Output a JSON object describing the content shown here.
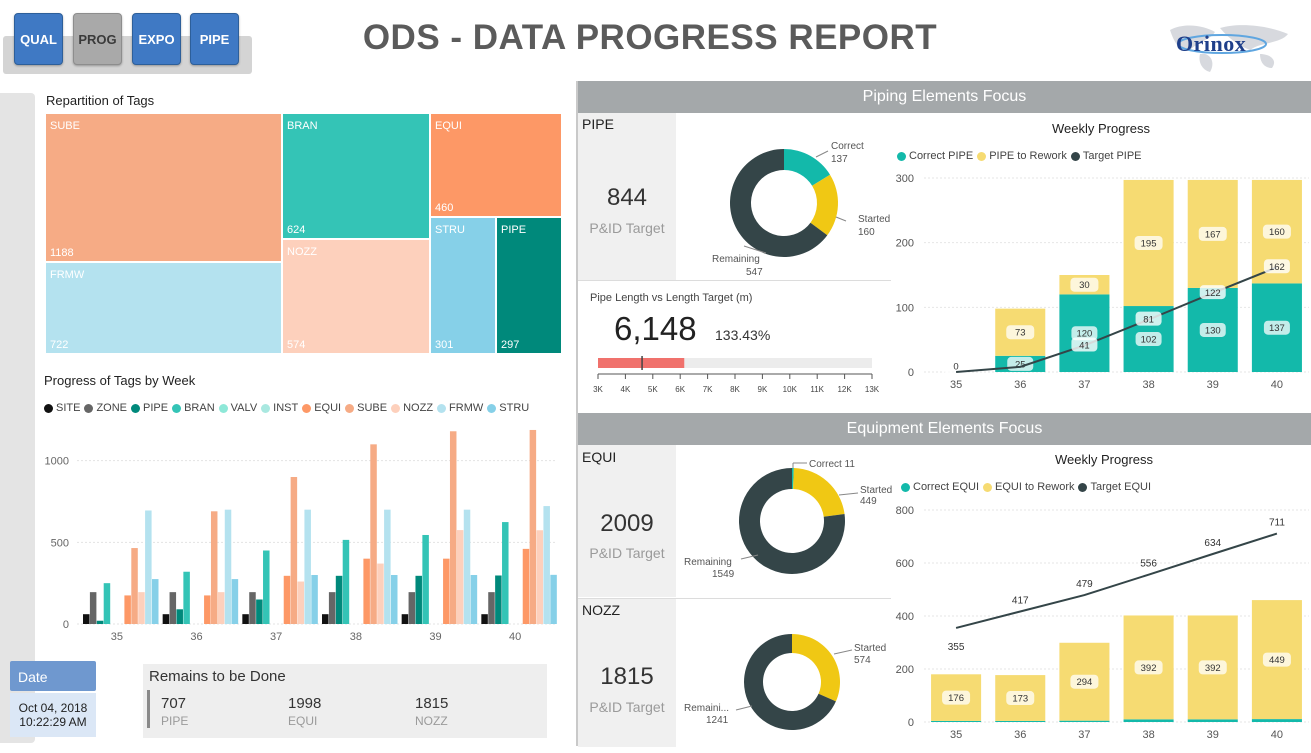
{
  "nav": {
    "buttons": [
      {
        "label": "QUAL",
        "active": false
      },
      {
        "label": "PROG",
        "active": true
      },
      {
        "label": "EXPO",
        "active": false
      },
      {
        "label": "PIPE",
        "active": false
      }
    ]
  },
  "header": {
    "title": "ODS - DATA PROGRESS REPORT",
    "logo": "Orinox"
  },
  "treemap": {
    "title": "Repartition of Tags",
    "tiles": [
      {
        "label": "SUBE",
        "value": "1188",
        "color": "#f6ab85"
      },
      {
        "label": "FRMW",
        "value": "722",
        "color": "#b4e2ef"
      },
      {
        "label": "BRAN",
        "value": "624",
        "color": "#34c4b6"
      },
      {
        "label": "NOZZ",
        "value": "574",
        "color": "#fdd0bc"
      },
      {
        "label": "EQUI",
        "value": "460",
        "color": "#fd9866"
      },
      {
        "label": "STRU",
        "value": "301",
        "color": "#86d0e8"
      },
      {
        "label": "PIPE",
        "value": "297",
        "color": "#00897b"
      }
    ]
  },
  "chart_data": [
    {
      "type": "bar",
      "title": "Progress of Tags by Week",
      "categories": [
        "35",
        "36",
        "37",
        "38",
        "39",
        "40"
      ],
      "ylim": [
        0,
        1200
      ],
      "yticks": [
        "0",
        "500",
        "1000"
      ],
      "legend": "top",
      "series": [
        {
          "name": "SITE",
          "color": "#111111",
          "values": [
            60,
            60,
            60,
            60,
            60,
            60
          ]
        },
        {
          "name": "ZONE",
          "color": "#666666",
          "values": [
            195,
            195,
            195,
            195,
            195,
            195
          ]
        },
        {
          "name": "PIPE",
          "color": "#00897b",
          "values": [
            20,
            90,
            150,
            295,
            295,
            297
          ]
        },
        {
          "name": "BRAN",
          "color": "#34c4b6",
          "values": [
            250,
            320,
            450,
            515,
            545,
            624
          ]
        },
        {
          "name": "VALV",
          "color": "#8ee8d8",
          "values": [
            0,
            0,
            0,
            0,
            0,
            0
          ]
        },
        {
          "name": "INST",
          "color": "#a9e8e0",
          "values": [
            0,
            0,
            0,
            0,
            0,
            0
          ]
        },
        {
          "name": "EQUI",
          "color": "#fd9866",
          "values": [
            175,
            175,
            295,
            400,
            400,
            460
          ]
        },
        {
          "name": "SUBE",
          "color": "#f6ab85",
          "values": [
            465,
            690,
            900,
            1100,
            1180,
            1188
          ]
        },
        {
          "name": "NOZZ",
          "color": "#fdd0bc",
          "values": [
            195,
            195,
            260,
            370,
            575,
            574
          ]
        },
        {
          "name": "FRMW",
          "color": "#b4e2ef",
          "values": [
            695,
            700,
            700,
            700,
            700,
            722
          ]
        },
        {
          "name": "STRU",
          "color": "#86d0e8",
          "values": [
            275,
            275,
            300,
            300,
            300,
            301
          ]
        }
      ]
    },
    {
      "type": "pie",
      "title": "PIPE",
      "slices": [
        {
          "label": "Correct",
          "value": 137,
          "color": "#13b9aa"
        },
        {
          "label": "Started",
          "value": 160,
          "color": "#f0c814"
        },
        {
          "label": "Remaining",
          "value": 547,
          "color": "#344548"
        }
      ]
    },
    {
      "type": "bar",
      "title": "Weekly Progress",
      "categories": [
        "35",
        "36",
        "37",
        "38",
        "39",
        "40"
      ],
      "ylim": [
        0,
        300
      ],
      "yticks": [
        "0",
        "100",
        "200",
        "300"
      ],
      "legend": "top-left",
      "series": [
        {
          "name": "Correct PIPE",
          "color": "#13b9aa",
          "values": [
            0,
            25,
            120,
            102,
            130,
            137
          ]
        },
        {
          "name": "PIPE to Rework",
          "color": "#f6db72",
          "values": [
            0,
            73,
            30,
            195,
            167,
            160
          ]
        },
        {
          "name": "Target PIPE",
          "color": "#344548",
          "type": "line",
          "values": [
            0,
            8,
            41,
            81,
            122,
            162
          ]
        }
      ],
      "labels": {
        "correct": [
          "0",
          "25",
          "120",
          "102",
          "130",
          "137"
        ],
        "rework": [
          "",
          "73",
          "30",
          "195",
          "167",
          "160"
        ],
        "target": [
          "",
          "",
          "41",
          "81",
          "122",
          "162"
        ]
      }
    },
    {
      "type": "pie",
      "title": "EQUI",
      "slices": [
        {
          "label": "Correct",
          "value": 11,
          "color": "#13b9aa"
        },
        {
          "label": "Started",
          "value": 449,
          "color": "#f0c814"
        },
        {
          "label": "Remaining",
          "value": 1549,
          "color": "#344548"
        }
      ]
    },
    {
      "type": "bar",
      "title": "Weekly Progress",
      "categories": [
        "35",
        "36",
        "37",
        "38",
        "39",
        "40"
      ],
      "ylim": [
        0,
        800
      ],
      "yticks": [
        "0",
        "200",
        "400",
        "600",
        "800"
      ],
      "legend": "top-left",
      "series": [
        {
          "name": "Correct EQUI",
          "color": "#13b9aa",
          "values": [
            4,
            4,
            5,
            10,
            10,
            11
          ]
        },
        {
          "name": "EQUI to Rework",
          "color": "#f6db72",
          "values": [
            176,
            173,
            294,
            392,
            392,
            449
          ]
        },
        {
          "name": "Target EQUI",
          "color": "#344548",
          "type": "line",
          "values": [
            355,
            417,
            479,
            556,
            634,
            711
          ]
        }
      ],
      "labels": {
        "rework": [
          "176",
          "173",
          "294",
          "392",
          "392",
          "449"
        ],
        "target": [
          "355",
          "417",
          "479",
          "556",
          "634",
          "711"
        ]
      }
    },
    {
      "type": "pie",
      "title": "NOZZ",
      "slices": [
        {
          "label": "Started",
          "value": 574,
          "color": "#f0c814"
        },
        {
          "label": "Remaining",
          "value": 1241,
          "color": "#344548"
        }
      ]
    }
  ],
  "progress_title": "Progress of Tags by Week",
  "piping": {
    "head": "Piping Elements Focus",
    "kpi_name": "PIPE",
    "kpi_value": "844",
    "kpi_caption": "P&ID Target",
    "donut": {
      "correct_label": "Correct",
      "correct_value": "137",
      "started_label": "Started",
      "started_value": "160",
      "remaining_label": "Remaining",
      "remaining_value": "547"
    },
    "weekly_title": "Weekly Progress",
    "legend": [
      "Correct PIPE",
      "PIPE to Rework",
      "Target PIPE"
    ],
    "length": {
      "title": "Pipe Length vs Length Target (m)",
      "value": "6,148",
      "pct": "133.43%",
      "bar_min": 3000,
      "bar_max": 13000,
      "bar_fill": 6148,
      "target": 4608,
      "ticks": [
        "3K",
        "4K",
        "5K",
        "6K",
        "7K",
        "8K",
        "9K",
        "10K",
        "11K",
        "12K",
        "13K"
      ]
    }
  },
  "equipment": {
    "head": "Equipment Elements Focus",
    "equi": {
      "name": "EQUI",
      "value": "2009",
      "caption": "P&ID Target",
      "correct_label": "Correct 11",
      "started_label": "Started",
      "started_value": "449",
      "remaining_label": "Remaining",
      "remaining_value": "1549"
    },
    "nozz": {
      "name": "NOZZ",
      "value": "1815",
      "caption": "P&ID Target",
      "started_label": "Started",
      "started_value": "574",
      "remaining_label": "Remaini...",
      "remaining_value": "1241"
    },
    "weekly_title": "Weekly Progress",
    "legend": [
      "Correct EQUI",
      "EQUI to Rework",
      "Target EQUI"
    ]
  },
  "date": {
    "head": "Date",
    "date": "Oct 04, 2018",
    "time": "10:22:29 AM"
  },
  "remains": {
    "title": "Remains to be Done",
    "items": [
      {
        "value": "707",
        "label": "PIPE"
      },
      {
        "value": "1998",
        "label": "EQUI"
      },
      {
        "value": "1815",
        "label": "NOZZ"
      }
    ]
  }
}
